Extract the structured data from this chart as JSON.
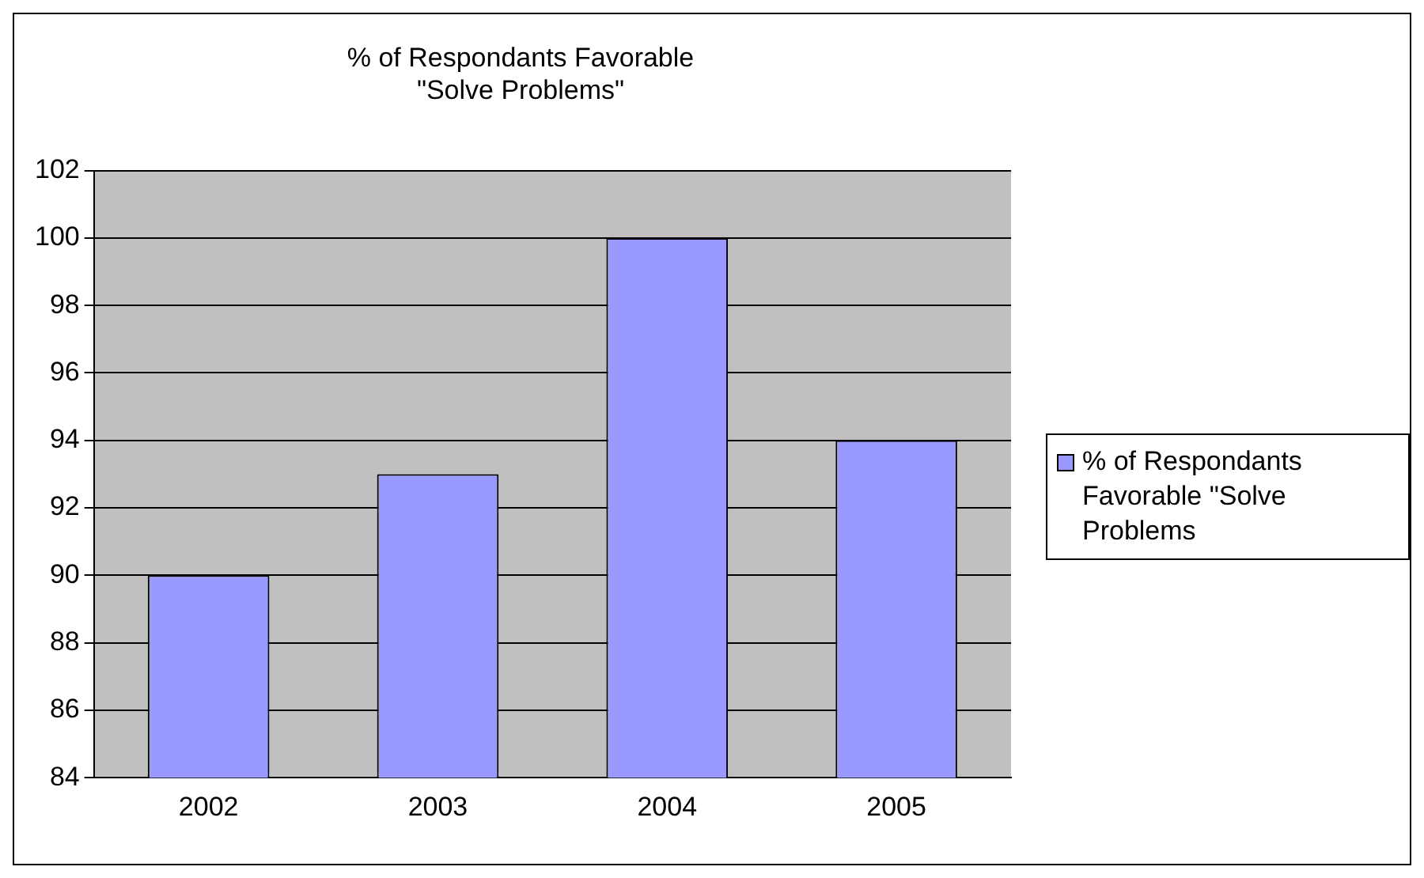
{
  "chart_data": {
    "type": "bar",
    "title": "% of Respondants Favorable\n\"Solve Problems\"",
    "categories": [
      "2002",
      "2003",
      "2004",
      "2005"
    ],
    "series": [
      {
        "name": "% of Respondants Favorable \"Solve Problems",
        "color": "#9999ff",
        "values": [
          90,
          93,
          100,
          94
        ]
      }
    ],
    "ylim": [
      84,
      102
    ],
    "yticks": [
      84,
      86,
      88,
      90,
      92,
      94,
      96,
      98,
      100,
      102
    ],
    "grid": "y",
    "legend": "right"
  }
}
